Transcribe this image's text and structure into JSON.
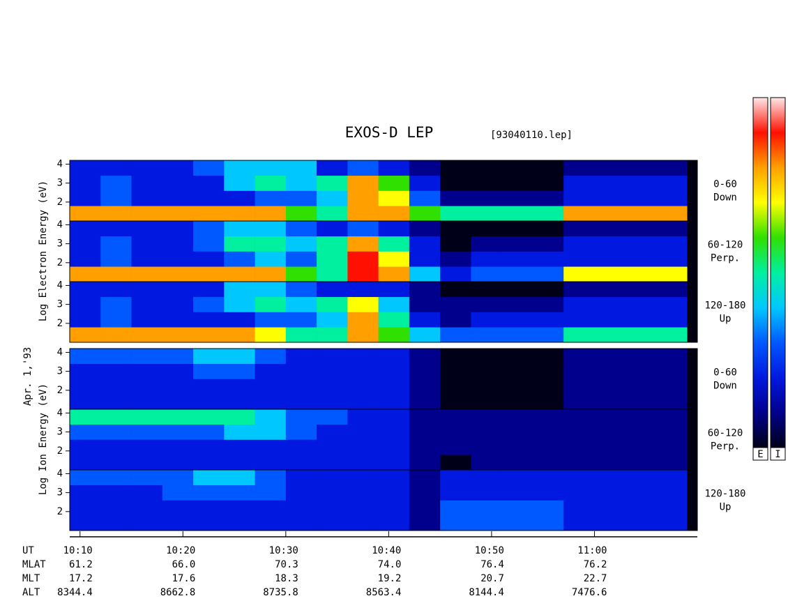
{
  "chart_data": {
    "type": "spectrogram",
    "title": "EXOS-D LEP",
    "subtitle": "[93040110.lep]",
    "date_label": "Apr. 1,'93",
    "group_labels": [
      "Log Electron Energy (eV)",
      "Log Ion Energy (eV)"
    ],
    "colorbar_labels": [
      "E",
      "I"
    ],
    "colorscale": [
      "#000018",
      "#00008c",
      "#0018e0",
      "#0058ff",
      "#00c8ff",
      "#00f0a0",
      "#30e000",
      "#ffff00",
      "#ffa000",
      "#ff1000",
      "#ffe8e8"
    ],
    "xlim": [
      609,
      670
    ],
    "xticks": [
      {
        "value": 610,
        "label": "10:10"
      },
      {
        "value": 620,
        "label": "10:20"
      },
      {
        "value": 630,
        "label": "10:30"
      },
      {
        "value": 640,
        "label": "10:40"
      },
      {
        "value": 650,
        "label": "10:50"
      },
      {
        "value": 660,
        "label": "11:00"
      }
    ],
    "ylim": [
      1,
      4.2
    ],
    "yticks": [
      2,
      3,
      4
    ],
    "time_bins": [
      609,
      612,
      615,
      618,
      621,
      624,
      627,
      630,
      633,
      636,
      639,
      642,
      645,
      648,
      651,
      654,
      657,
      660,
      663,
      666,
      669
    ],
    "energy_bins": [
      1,
      1.8,
      2.6,
      3.4,
      4.2
    ],
    "panels": [
      {
        "group": 0,
        "label": [
          "0-60",
          "Down"
        ],
        "values": [
          [
            8,
            8,
            8,
            8,
            8,
            8,
            8,
            6,
            5,
            8,
            8,
            6,
            5,
            5,
            5,
            5,
            8,
            8,
            8,
            8
          ],
          [
            2,
            3,
            2,
            2,
            2,
            2,
            3,
            3,
            4,
            8,
            7,
            3,
            1,
            1,
            1,
            1,
            2,
            2,
            2,
            2
          ],
          [
            2,
            3,
            2,
            2,
            2,
            4,
            5,
            4,
            5,
            8,
            6,
            2,
            0,
            0,
            0,
            0,
            2,
            2,
            2,
            2
          ],
          [
            2,
            2,
            2,
            2,
            3,
            4,
            4,
            4,
            2,
            3,
            2,
            1,
            0,
            0,
            0,
            0,
            1,
            1,
            1,
            1
          ]
        ]
      },
      {
        "group": 0,
        "label": [
          "60-120",
          "Perp."
        ],
        "values": [
          [
            8,
            8,
            8,
            8,
            8,
            8,
            8,
            6,
            5,
            9,
            8,
            4,
            2,
            3,
            3,
            3,
            7,
            7,
            7,
            7
          ],
          [
            2,
            3,
            2,
            2,
            2,
            3,
            4,
            3,
            5,
            9,
            7,
            2,
            1,
            2,
            2,
            2,
            2,
            2,
            2,
            2
          ],
          [
            2,
            3,
            2,
            2,
            3,
            5,
            5,
            4,
            5,
            8,
            5,
            2,
            0,
            1,
            1,
            1,
            2,
            2,
            2,
            2
          ],
          [
            2,
            2,
            2,
            2,
            3,
            4,
            4,
            3,
            2,
            3,
            2,
            1,
            0,
            0,
            0,
            0,
            1,
            1,
            1,
            1
          ]
        ]
      },
      {
        "group": 0,
        "label": [
          "120-180",
          "Up"
        ],
        "values": [
          [
            8,
            8,
            8,
            8,
            8,
            8,
            7,
            5,
            5,
            8,
            6,
            4,
            3,
            3,
            3,
            3,
            5,
            5,
            5,
            5
          ],
          [
            2,
            3,
            2,
            2,
            2,
            2,
            3,
            3,
            4,
            8,
            5,
            2,
            1,
            2,
            2,
            2,
            2,
            2,
            2,
            2
          ],
          [
            2,
            3,
            2,
            2,
            3,
            4,
            5,
            4,
            5,
            7,
            4,
            1,
            1,
            1,
            1,
            1,
            2,
            2,
            2,
            2
          ],
          [
            2,
            2,
            2,
            2,
            2,
            4,
            4,
            3,
            2,
            2,
            2,
            1,
            0,
            0,
            0,
            0,
            1,
            1,
            1,
            1
          ]
        ]
      },
      {
        "group": 1,
        "label": [
          "0-60",
          "Down"
        ],
        "values": [
          [
            2,
            2,
            2,
            2,
            2,
            2,
            2,
            2,
            2,
            2,
            2,
            1,
            0,
            0,
            0,
            0,
            1,
            1,
            1,
            1
          ],
          [
            2,
            2,
            2,
            2,
            2,
            2,
            2,
            2,
            2,
            2,
            2,
            1,
            0,
            0,
            0,
            0,
            1,
            1,
            1,
            1
          ],
          [
            2,
            2,
            2,
            2,
            3,
            3,
            2,
            2,
            2,
            2,
            2,
            1,
            0,
            0,
            0,
            0,
            1,
            1,
            1,
            1
          ],
          [
            3,
            3,
            3,
            3,
            4,
            4,
            3,
            2,
            2,
            2,
            2,
            1,
            0,
            0,
            0,
            0,
            1,
            1,
            1,
            1
          ]
        ]
      },
      {
        "group": 1,
        "label": [
          "60-120",
          "Perp."
        ],
        "values": [
          [
            2,
            2,
            2,
            2,
            2,
            2,
            2,
            2,
            2,
            2,
            2,
            1,
            0,
            1,
            1,
            1,
            1,
            1,
            1,
            1
          ],
          [
            2,
            2,
            2,
            2,
            2,
            2,
            2,
            2,
            2,
            2,
            2,
            1,
            1,
            1,
            1,
            1,
            1,
            1,
            1,
            1
          ],
          [
            3,
            3,
            3,
            3,
            3,
            4,
            4,
            3,
            2,
            2,
            2,
            1,
            1,
            1,
            1,
            1,
            1,
            1,
            1,
            1
          ],
          [
            5,
            5,
            5,
            5,
            5,
            5,
            4,
            3,
            3,
            2,
            2,
            1,
            1,
            1,
            1,
            1,
            1,
            1,
            1,
            1
          ]
        ]
      },
      {
        "group": 1,
        "label": [
          "120-180",
          "Up"
        ],
        "values": [
          [
            2,
            2,
            2,
            2,
            2,
            2,
            2,
            2,
            2,
            2,
            2,
            1,
            3,
            3,
            3,
            3,
            2,
            2,
            2,
            2
          ],
          [
            2,
            2,
            2,
            2,
            2,
            2,
            2,
            2,
            2,
            2,
            2,
            1,
            3,
            3,
            3,
            3,
            2,
            2,
            2,
            2
          ],
          [
            2,
            2,
            2,
            3,
            3,
            3,
            3,
            2,
            2,
            2,
            2,
            1,
            2,
            2,
            2,
            2,
            2,
            2,
            2,
            2
          ],
          [
            3,
            3,
            3,
            3,
            4,
            4,
            3,
            2,
            2,
            2,
            2,
            1,
            2,
            2,
            2,
            2,
            2,
            2,
            2,
            2
          ]
        ]
      }
    ],
    "table": {
      "row_labels": [
        "UT",
        "MLAT",
        "MLT",
        "ALT"
      ],
      "rows": [
        [
          "61.2",
          "66.0",
          "70.3",
          "74.0",
          "76.4",
          "76.2"
        ],
        [
          "17.2",
          "17.6",
          "18.3",
          "19.2",
          "20.7",
          "22.7"
        ],
        [
          "8344.4",
          "8662.8",
          "8735.8",
          "8563.4",
          "8144.4",
          "7476.6"
        ]
      ]
    }
  }
}
